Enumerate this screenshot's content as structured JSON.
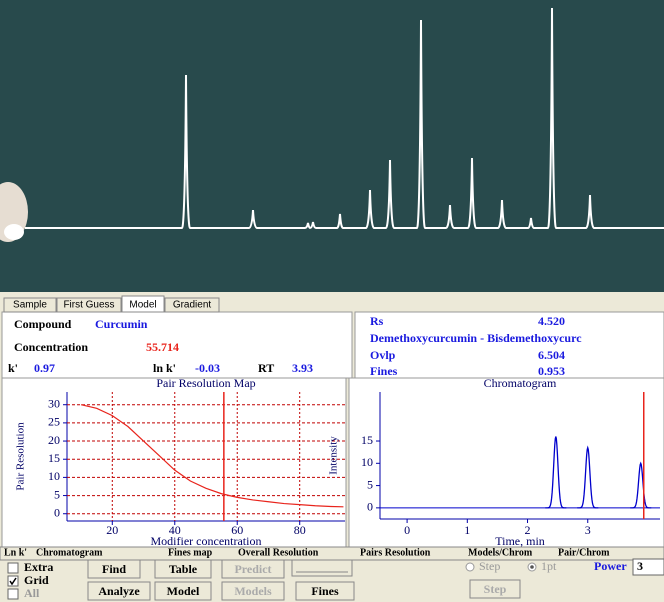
{
  "tabs": [
    "Sample",
    "First Guess",
    "Model",
    "Gradient"
  ],
  "compound": {
    "label": "Compound",
    "value": "Curcumin"
  },
  "concentration": {
    "label": "Concentration",
    "value": 55.714
  },
  "k_prime": {
    "label": "k'",
    "value": 0.97
  },
  "ln_k": {
    "label": "ln k'",
    "value": -0.03
  },
  "rt": {
    "label": "RT",
    "value": 3.93
  },
  "rs": {
    "label": "Rs",
    "value": "4.520"
  },
  "pair": "Demethoxycurcumin - Bisdemethoxycurc",
  "ovlp": {
    "label": "Ovlp",
    "value": 6.504
  },
  "fines": {
    "label": "Fines",
    "value": 0.953
  },
  "resolution_map": {
    "type": "line",
    "title": "Pair Resolution Map",
    "x_label": "Modifier concentration",
    "y_label": "Pair Resolution",
    "x": [
      10,
      15,
      20,
      25,
      30,
      35,
      40,
      45,
      50,
      55,
      60,
      65,
      70,
      75,
      80,
      85,
      90,
      94
    ],
    "values": [
      30,
      29,
      27,
      24,
      20,
      16,
      12,
      9,
      7,
      5.5,
      4.5,
      3.8,
      3.3,
      2.8,
      2.5,
      2.2,
      2,
      1.9
    ],
    "color": "#e8241c",
    "xlim": [
      5.5,
      94.5
    ],
    "ylim": [
      -2,
      33.5
    ],
    "xticks": [
      20,
      40,
      60,
      80
    ],
    "yticks": [
      0,
      5,
      10,
      15,
      20,
      25,
      30
    ],
    "grid": true
  },
  "chromatogram": {
    "type": "peaks",
    "title": "Chromatogram",
    "x_label": "Time, min",
    "y_label": "Intensity",
    "x": [
      2.47,
      3.0,
      3.88
    ],
    "values": [
      16,
      13.5,
      10
    ],
    "color": "#0000cc",
    "xlim": [
      -0.45,
      4.2
    ],
    "ylim": [
      -2.5,
      26
    ],
    "xticks": [
      0,
      1,
      2,
      3
    ],
    "yticks": [
      0,
      5,
      10,
      15
    ]
  },
  "bottom_tabs": [
    "Ln k'",
    "Chromatogram",
    "Fines map",
    "Overall Resolution",
    "Pairs Resolution",
    "Models/Chrom",
    "Pair/Chrom"
  ],
  "checkboxes": [
    {
      "label": "Extra",
      "checked": false
    },
    {
      "label": "Grid",
      "checked": true
    },
    {
      "label": "All",
      "checked": false,
      "enabled": false
    }
  ],
  "buttons": [
    {
      "label": "Find",
      "enabled": true
    },
    {
      "label": "Table",
      "enabled": true
    },
    {
      "label": "Predict",
      "enabled": false
    },
    {
      "label": "Analyze",
      "enabled": true
    },
    {
      "label": "Model",
      "enabled": true
    },
    {
      "label": "Models",
      "enabled": false
    },
    {
      "label": "Fines",
      "enabled": true
    },
    {
      "label": "Step",
      "enabled": false
    }
  ],
  "radios": [
    {
      "label": "Step",
      "selected": false
    },
    {
      "label": "1pt",
      "selected": true
    }
  ],
  "power": {
    "label": "Power",
    "value": 3
  }
}
